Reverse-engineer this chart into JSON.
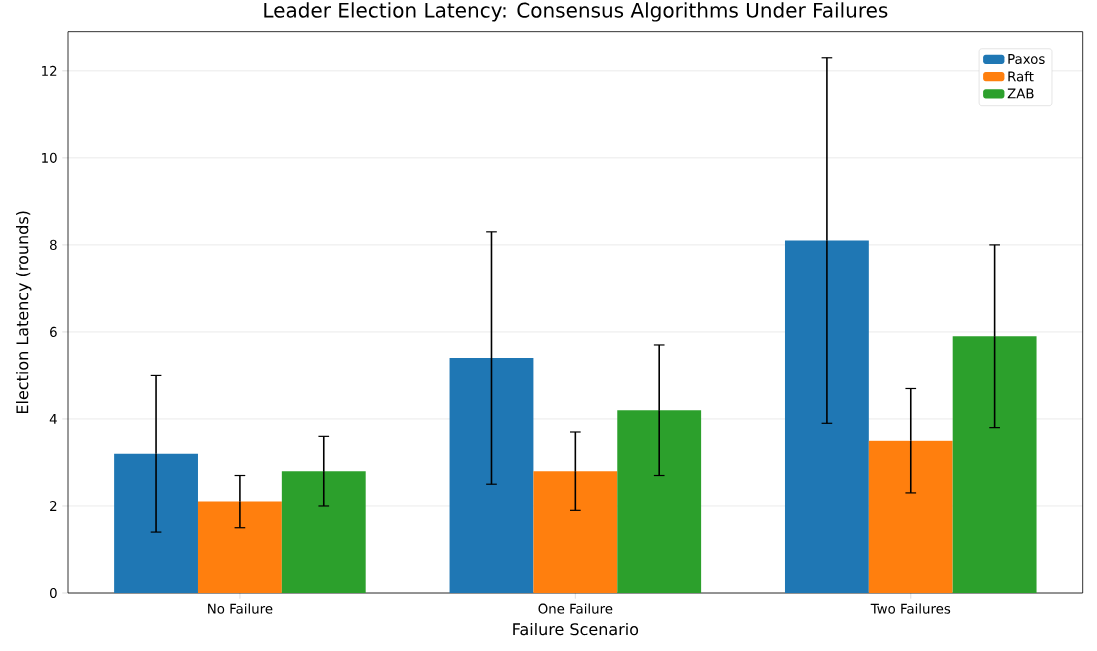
{
  "chart_data": {
    "type": "bar",
    "title": "Leader Election Latency: Consensus Algorithms Under Failures",
    "xlabel": "Failure Scenario",
    "ylabel": "Election Latency (rounds)",
    "categories": [
      "No Failure",
      "One Failure",
      "Two Failures"
    ],
    "series": [
      {
        "name": "Paxos",
        "color": "#1f77b4",
        "values": [
          3.2,
          5.4,
          8.1
        ],
        "errors": [
          1.8,
          2.9,
          4.2
        ]
      },
      {
        "name": "Raft",
        "color": "#ff7f0e",
        "values": [
          2.1,
          2.8,
          3.5
        ],
        "errors": [
          0.6,
          0.9,
          1.2
        ]
      },
      {
        "name": "ZAB",
        "color": "#2ca02c",
        "values": [
          2.8,
          4.2,
          5.9
        ],
        "errors": [
          0.8,
          1.5,
          2.1
        ]
      }
    ],
    "ylim": [
      0,
      12.9
    ],
    "yticks": [
      0,
      2,
      4,
      6,
      8,
      10,
      12
    ],
    "grid": "y",
    "legend": "top right"
  }
}
